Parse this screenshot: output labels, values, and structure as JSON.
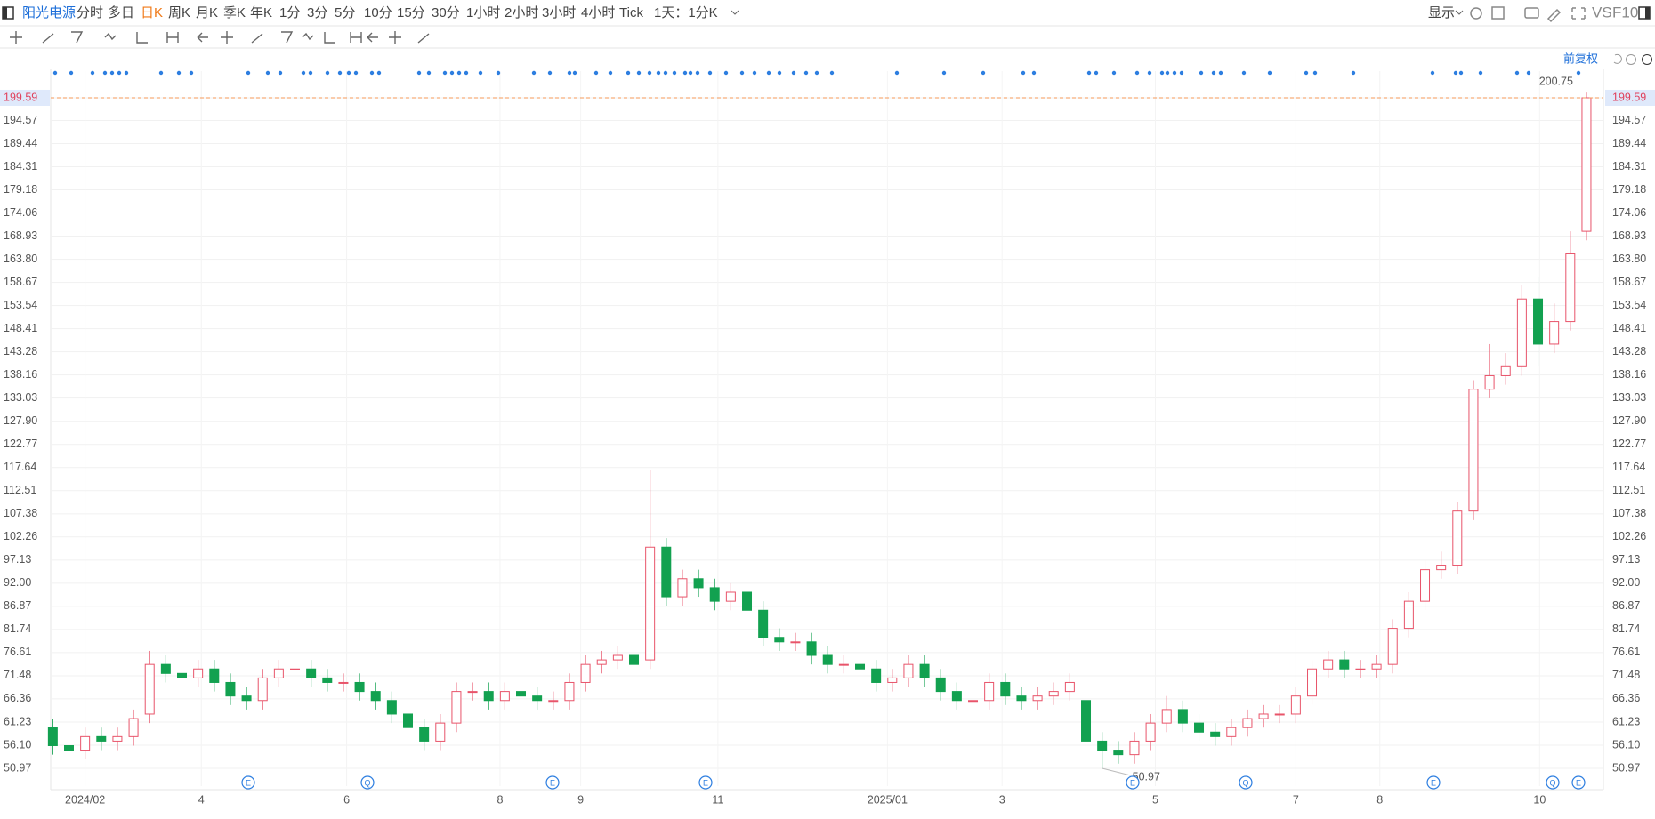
{
  "toolbar": {
    "symbol": "阳光电源",
    "periods": [
      "分时",
      "多日",
      "日K",
      "周K",
      "月K",
      "季K",
      "年K",
      "1分",
      "3分",
      "5分",
      "10分",
      "15分",
      "30分",
      "1小时",
      "2小时",
      "3小时",
      "4小时",
      "Tick"
    ],
    "active_period": "日K",
    "interval": "1天：1分K",
    "display": "显示",
    "vs": "VS",
    "f10": "F10",
    "adjust": "前复权"
  },
  "chart_data": {
    "type": "candlestick",
    "up_color": "#e8546a",
    "down_color": "#12a150",
    "open": [
      60,
      56,
      55,
      58,
      57,
      58,
      63,
      74,
      72,
      71,
      73,
      70,
      67,
      66,
      71,
      73,
      73,
      71,
      70,
      70,
      68,
      66,
      63,
      60,
      57,
      61,
      68,
      68,
      66,
      68,
      67,
      66,
      66,
      70,
      74,
      75,
      76,
      75,
      100,
      89,
      93,
      91,
      88,
      90,
      86,
      80,
      79,
      79,
      76,
      74,
      74,
      73,
      70,
      71,
      74,
      71,
      68,
      66,
      66,
      70,
      67,
      66,
      67,
      68,
      66,
      57,
      55,
      54,
      57,
      61,
      64,
      61,
      59,
      58,
      60,
      62,
      63,
      63,
      67,
      73,
      75,
      73,
      73,
      74,
      82,
      88,
      95,
      96,
      108,
      135,
      138,
      140,
      155,
      145,
      150,
      170
    ],
    "high": [
      62,
      58,
      60,
      60,
      60,
      64,
      77,
      76,
      74,
      75,
      75,
      72,
      69,
      73,
      75,
      75,
      75,
      73,
      72,
      72,
      70,
      68,
      65,
      62,
      63,
      70,
      70,
      70,
      70,
      70,
      69,
      68,
      72,
      76,
      77,
      78,
      78,
      117,
      102,
      95,
      95,
      93,
      92,
      92,
      88,
      82,
      81,
      81,
      78,
      76,
      76,
      75,
      73,
      76,
      76,
      73,
      70,
      68,
      72,
      72,
      69,
      69,
      70,
      72,
      68,
      59,
      57,
      59,
      63,
      67,
      66,
      63,
      61,
      62,
      64,
      65,
      65,
      69,
      75,
      77,
      77,
      75,
      76,
      84,
      90,
      97,
      99,
      110,
      137,
      145,
      143,
      158,
      160,
      154,
      170,
      200.75
    ],
    "low": [
      54,
      53,
      53,
      55,
      55,
      56,
      61,
      70,
      69,
      69,
      68,
      65,
      64,
      64,
      69,
      71,
      69,
      68,
      68,
      66,
      64,
      61,
      58,
      55,
      55,
      59,
      66,
      64,
      64,
      65,
      64,
      64,
      64,
      68,
      72,
      73,
      72,
      73,
      87,
      87,
      89,
      86,
      86,
      84,
      78,
      77,
      77,
      74,
      72,
      72,
      71,
      68,
      68,
      69,
      69,
      66,
      64,
      64,
      64,
      65,
      64,
      64,
      65,
      66,
      55,
      50.97,
      52,
      52,
      55,
      59,
      59,
      57,
      56,
      56,
      58,
      60,
      61,
      61,
      65,
      71,
      71,
      71,
      71,
      72,
      80,
      86,
      93,
      94,
      106,
      133,
      136,
      138,
      140,
      143,
      148,
      168
    ],
    "close": [
      56,
      55,
      58,
      57,
      58,
      62,
      74,
      72,
      71,
      73,
      70,
      67,
      66,
      71,
      73,
      73,
      71,
      70,
      70,
      68,
      66,
      63,
      60,
      57,
      61,
      68,
      68,
      66,
      68,
      67,
      66,
      66,
      70,
      74,
      75,
      76,
      74,
      100,
      89,
      93,
      91,
      88,
      90,
      86,
      80,
      79,
      79,
      76,
      74,
      74,
      73,
      70,
      71,
      74,
      71,
      68,
      66,
      66,
      70,
      67,
      66,
      67,
      68,
      70,
      57,
      55,
      54,
      57,
      61,
      64,
      61,
      59,
      58,
      60,
      62,
      63,
      63,
      67,
      73,
      75,
      73,
      73,
      74,
      82,
      88,
      95,
      96,
      108,
      135,
      138,
      140,
      155,
      145,
      150,
      165,
      199.59
    ],
    "xlim": [
      -0.13,
      96.05
    ],
    "xticks": [
      {
        "value": 2,
        "label": "2024/02"
      },
      {
        "value": 9.2,
        "label": "4"
      },
      {
        "value": 18.2,
        "label": "6"
      },
      {
        "value": 27.7,
        "label": "8"
      },
      {
        "value": 32.7,
        "label": "9"
      },
      {
        "value": 41.2,
        "label": "11"
      },
      {
        "value": 51.7,
        "label": "2025/01"
      },
      {
        "value": 58.8,
        "label": "3"
      },
      {
        "value": 68.3,
        "label": "5"
      },
      {
        "value": 77,
        "label": "7"
      },
      {
        "value": 82.2,
        "label": "8"
      },
      {
        "value": 92.1,
        "label": "10"
      }
    ],
    "ylim": [
      47.03,
      205.5
    ],
    "yticks": [
      50.97,
      {
        "value": 56.1,
        "label": "56.10"
      },
      61.23,
      66.36,
      71.48,
      76.61,
      81.74,
      86.87,
      {
        "value": 92,
        "label": "92.00"
      },
      97.13,
      102.26,
      107.38,
      112.51,
      117.64,
      122.77,
      {
        "value": 127.9,
        "label": "127.90"
      },
      133.03,
      138.16,
      143.28,
      148.41,
      153.54,
      158.67,
      {
        "value": 163.8,
        "label": "163.80"
      },
      168.93,
      174.06,
      179.18,
      184.31,
      189.44,
      194.57,
      199.59
    ],
    "grid": true,
    "event_icons": [
      "E",
      "Q",
      "E",
      "E",
      "E",
      "Q",
      "E",
      "Q",
      "E"
    ]
  }
}
